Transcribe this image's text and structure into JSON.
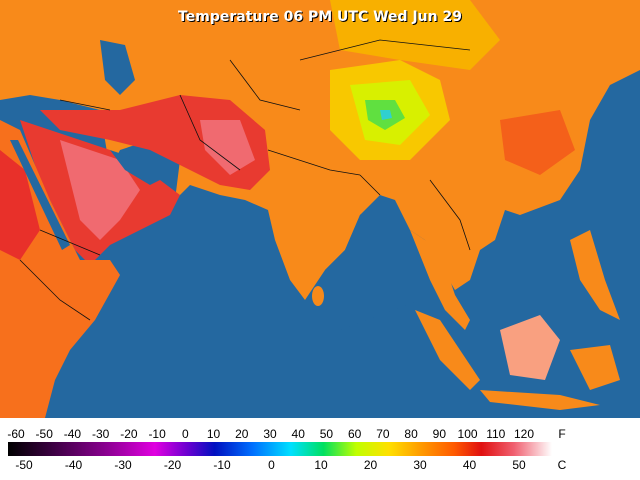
{
  "title": "Temperature 06 PM UTC Wed Jun 29",
  "legend": {
    "fahrenheit_unit": "F",
    "celsius_unit": "C",
    "fahrenheit_labels": [
      -60,
      -50,
      -40,
      -30,
      -20,
      -10,
      0,
      10,
      20,
      30,
      40,
      50,
      60,
      70,
      80,
      90,
      100,
      110,
      120
    ],
    "celsius_labels": [
      -50,
      -40,
      -30,
      -20,
      -10,
      0,
      10,
      20,
      30,
      40,
      50
    ]
  }
}
